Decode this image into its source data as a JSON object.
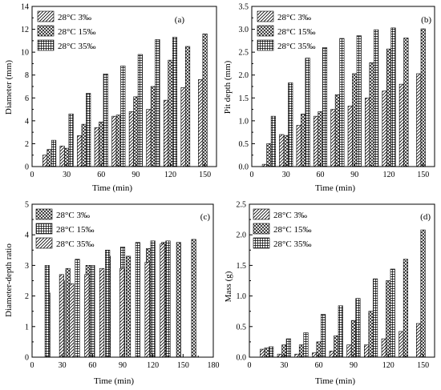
{
  "colors": {
    "ink": "#000000",
    "background": "#ffffff"
  },
  "chart_data": [
    {
      "panel_label": "(a)",
      "type": "bar",
      "xlabel": "Time (min)",
      "ylabel": "Diameter (mm)",
      "xlim": [
        0,
        160
      ],
      "ylim": [
        0,
        14
      ],
      "xticks": [
        0,
        30,
        60,
        90,
        120,
        150
      ],
      "yticks": [
        0,
        2,
        4,
        6,
        8,
        10,
        12,
        14
      ],
      "legend_position": "top-left",
      "series": [
        {
          "name": "28°C 3‰",
          "pattern": "diagonal",
          "x": [
            15,
            30,
            45,
            60,
            75,
            90,
            105,
            120,
            135,
            150
          ],
          "values": [
            1.0,
            1.8,
            2.7,
            3.4,
            4.4,
            4.8,
            5.0,
            5.8,
            6.9,
            7.6
          ]
        },
        {
          "name": "28°C 15‰",
          "pattern": "crosshatch",
          "x": [
            15,
            30,
            45,
            60,
            75,
            90,
            105,
            120,
            135,
            150
          ],
          "values": [
            1.5,
            1.6,
            3.7,
            3.9,
            4.5,
            6.1,
            7.0,
            9.3,
            10.5,
            11.6
          ]
        },
        {
          "name": "28°C 35‰",
          "pattern": "grid",
          "x": [
            15,
            30,
            45,
            60,
            75,
            90,
            105,
            120
          ],
          "values": [
            2.3,
            4.6,
            6.4,
            8.1,
            8.8,
            9.8,
            11.1,
            11.3
          ]
        }
      ]
    },
    {
      "panel_label": "(b)",
      "type": "bar",
      "xlabel": "Time (min)",
      "ylabel": "Pit depth (mm)",
      "xlim": [
        0,
        160
      ],
      "ylim": [
        0,
        3.5
      ],
      "xticks": [
        0,
        30,
        60,
        90,
        120,
        150
      ],
      "yticks": [
        0.0,
        0.5,
        1.0,
        1.5,
        2.0,
        2.5,
        3.0,
        3.5
      ],
      "legend_position": "top-left",
      "series": [
        {
          "name": "28°C 3‰",
          "pattern": "diagonal",
          "x": [
            15,
            30,
            45,
            60,
            75,
            90,
            105,
            120,
            135,
            150
          ],
          "values": [
            0.05,
            0.7,
            0.9,
            1.1,
            1.25,
            1.32,
            1.5,
            1.65,
            1.8,
            2.03
          ]
        },
        {
          "name": "28°C 15‰",
          "pattern": "crosshatch",
          "x": [
            15,
            30,
            45,
            60,
            75,
            90,
            105,
            120,
            135,
            150
          ],
          "values": [
            0.5,
            0.68,
            1.15,
            1.2,
            1.57,
            2.03,
            2.27,
            2.57,
            2.81,
            3.01
          ]
        },
        {
          "name": "28°C 35‰",
          "pattern": "grid",
          "x": [
            15,
            30,
            45,
            60,
            75,
            90,
            105,
            120
          ],
          "values": [
            1.1,
            1.83,
            2.37,
            2.6,
            2.8,
            2.86,
            2.99,
            3.03
          ]
        }
      ]
    },
    {
      "panel_label": "(c)",
      "type": "bar",
      "xlabel": "Time (min)",
      "ylabel": "Diameter-depth ratio",
      "xlim": [
        0,
        180
      ],
      "ylim": [
        0,
        5
      ],
      "xticks": [
        0,
        30,
        60,
        90,
        120,
        150,
        180
      ],
      "yticks": [
        0,
        1,
        2,
        3,
        4,
        5
      ],
      "legend_position": "top-left",
      "series": [
        {
          "name": "28°C 3‰",
          "pattern": "crosshatch",
          "x": [
            20,
            40,
            60,
            80,
            100,
            120,
            135,
            150,
            165
          ],
          "values": [
            2.1,
            2.9,
            3.0,
            3.3,
            3.3,
            3.55,
            3.75,
            3.75,
            3.85
          ]
        },
        {
          "name": "28°C 15‰",
          "pattern": "grid",
          "x": [
            15,
            30,
            45,
            60,
            75,
            90,
            105,
            120,
            135
          ],
          "values": [
            3.0,
            2.5,
            3.2,
            3.0,
            3.5,
            3.6,
            3.75,
            3.8,
            3.8
          ]
        },
        {
          "name": "28°C 35‰",
          "pattern": "diagonal",
          "x": [
            25,
            35,
            50,
            65,
            85,
            110,
            125
          ],
          "values": [
            2.7,
            2.4,
            2.7,
            2.9,
            2.9,
            3.1,
            3.7
          ]
        }
      ]
    },
    {
      "panel_label": "(d)",
      "type": "bar",
      "xlabel": "Time (min)",
      "ylabel": "Mass (g)",
      "xlim": [
        0,
        160
      ],
      "ylim": [
        0,
        2.5
      ],
      "xticks": [
        0,
        30,
        60,
        90,
        120,
        150
      ],
      "yticks": [
        0.0,
        0.5,
        1.0,
        1.5,
        2.0,
        2.5
      ],
      "legend_position": "top-left",
      "series": [
        {
          "name": "28°C 3‰",
          "pattern": "diagonal",
          "x": [
            15,
            30,
            45,
            60,
            75,
            90,
            105,
            120,
            135,
            150
          ],
          "values": [
            0.13,
            0.05,
            0.05,
            0.07,
            0.1,
            0.2,
            0.2,
            0.3,
            0.42,
            0.55
          ]
        },
        {
          "name": "28°C 15‰",
          "pattern": "crosshatch",
          "x": [
            15,
            30,
            45,
            60,
            75,
            90,
            105,
            120,
            135,
            150
          ],
          "values": [
            0.15,
            0.2,
            0.2,
            0.25,
            0.35,
            0.6,
            0.75,
            1.25,
            1.6,
            2.08
          ]
        },
        {
          "name": "28°C 35‰",
          "pattern": "grid",
          "x": [
            15,
            30,
            45,
            60,
            75,
            90,
            105,
            120
          ],
          "values": [
            0.17,
            0.3,
            0.4,
            0.7,
            0.84,
            0.96,
            1.28,
            1.44
          ]
        }
      ]
    }
  ]
}
